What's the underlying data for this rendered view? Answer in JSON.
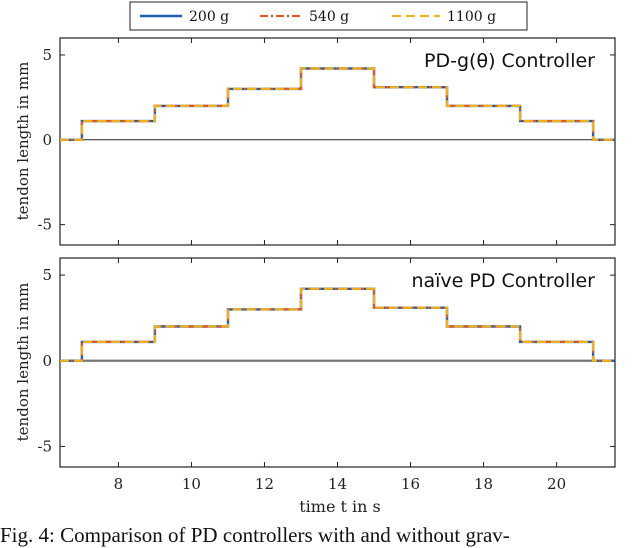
{
  "chart_data": [
    {
      "type": "line",
      "title": "PD-g(θ) Controller",
      "ylabel": "tendon length in mm",
      "xlabel": "",
      "xlim": [
        6.4,
        21.6
      ],
      "ylim": [
        -6.2,
        6.0
      ],
      "yticks": [
        -5,
        0,
        5
      ],
      "xticks": [],
      "reference": {
        "x": [
          6.4,
          7,
          9,
          11,
          13,
          15,
          17,
          19,
          21,
          21.6
        ],
        "y": [
          0,
          1.1,
          2.0,
          3.0,
          4.2,
          3.1,
          2.0,
          1.1,
          0,
          0
        ]
      },
      "series": [
        {
          "name": "200 g",
          "color": "#1f5fb0",
          "style": "solid",
          "x": [
            6.4,
            7,
            9,
            11,
            13,
            15,
            17,
            19,
            21,
            21.6
          ],
          "y": [
            0,
            1.1,
            2.0,
            3.0,
            4.2,
            3.1,
            2.0,
            1.1,
            0,
            0
          ]
        },
        {
          "name": "540 g",
          "color": "#d95b2a",
          "style": "dashdot",
          "x": [
            6.4,
            7,
            9,
            11,
            13,
            15,
            17,
            19,
            21,
            21.6
          ],
          "y": [
            0,
            1.1,
            2.0,
            3.0,
            4.2,
            3.1,
            2.0,
            1.1,
            0,
            0
          ]
        },
        {
          "name": "1100 g",
          "color": "#edb120",
          "style": "dashed",
          "x": [
            6.4,
            7,
            9,
            11,
            13,
            15,
            17,
            19,
            21,
            21.6
          ],
          "y": [
            0,
            1.1,
            2.0,
            3.0,
            4.2,
            3.1,
            2.0,
            1.1,
            0,
            0
          ]
        }
      ]
    },
    {
      "type": "line",
      "title": "naïve PD Controller",
      "ylabel": "tendon length in mm",
      "xlabel": "time t in s",
      "xlim": [
        6.4,
        21.6
      ],
      "ylim": [
        -6.2,
        6.0
      ],
      "yticks": [
        -5,
        0,
        5
      ],
      "xticks": [
        8,
        10,
        12,
        14,
        16,
        18,
        20
      ],
      "reference": {
        "x": [
          6.4,
          7,
          9,
          11,
          13,
          15,
          17,
          19,
          21,
          21.6
        ],
        "y": [
          0,
          1.1,
          2.0,
          3.0,
          4.2,
          3.1,
          2.0,
          1.1,
          0,
          0
        ]
      },
      "series": [
        {
          "name": "200 g",
          "color": "#1f5fb0",
          "style": "solid",
          "x": [
            6.4,
            7,
            9,
            11,
            13,
            15,
            17,
            19,
            21,
            21.6
          ],
          "y": [
            0,
            1.1,
            2.0,
            3.0,
            4.2,
            3.1,
            2.0,
            1.1,
            0,
            0
          ]
        },
        {
          "name": "540 g",
          "color": "#d95b2a",
          "style": "dashdot",
          "x": [
            6.4,
            7,
            9,
            11,
            13,
            15,
            17,
            19,
            21,
            21.6
          ],
          "y": [
            0,
            1.1,
            2.0,
            3.0,
            4.2,
            3.1,
            2.0,
            1.1,
            0,
            0
          ]
        },
        {
          "name": "1100 g",
          "color": "#edb120",
          "style": "dashed",
          "x": [
            6.4,
            7,
            9,
            11,
            13,
            15,
            17,
            19,
            21,
            21.6
          ],
          "y": [
            0,
            1.1,
            2.0,
            3.0,
            4.2,
            3.1,
            2.0,
            1.1,
            0,
            0
          ]
        }
      ]
    }
  ],
  "legend": {
    "items": [
      {
        "label": "200 g",
        "color": "#1f5fb0",
        "style": "solid"
      },
      {
        "label": "540 g",
        "color": "#d95b2a",
        "style": "dashdot"
      },
      {
        "label": "1100 g",
        "color": "#edb120",
        "style": "dashed"
      }
    ]
  },
  "caption": "Fig. 4: Comparison of PD controllers with and without grav-"
}
